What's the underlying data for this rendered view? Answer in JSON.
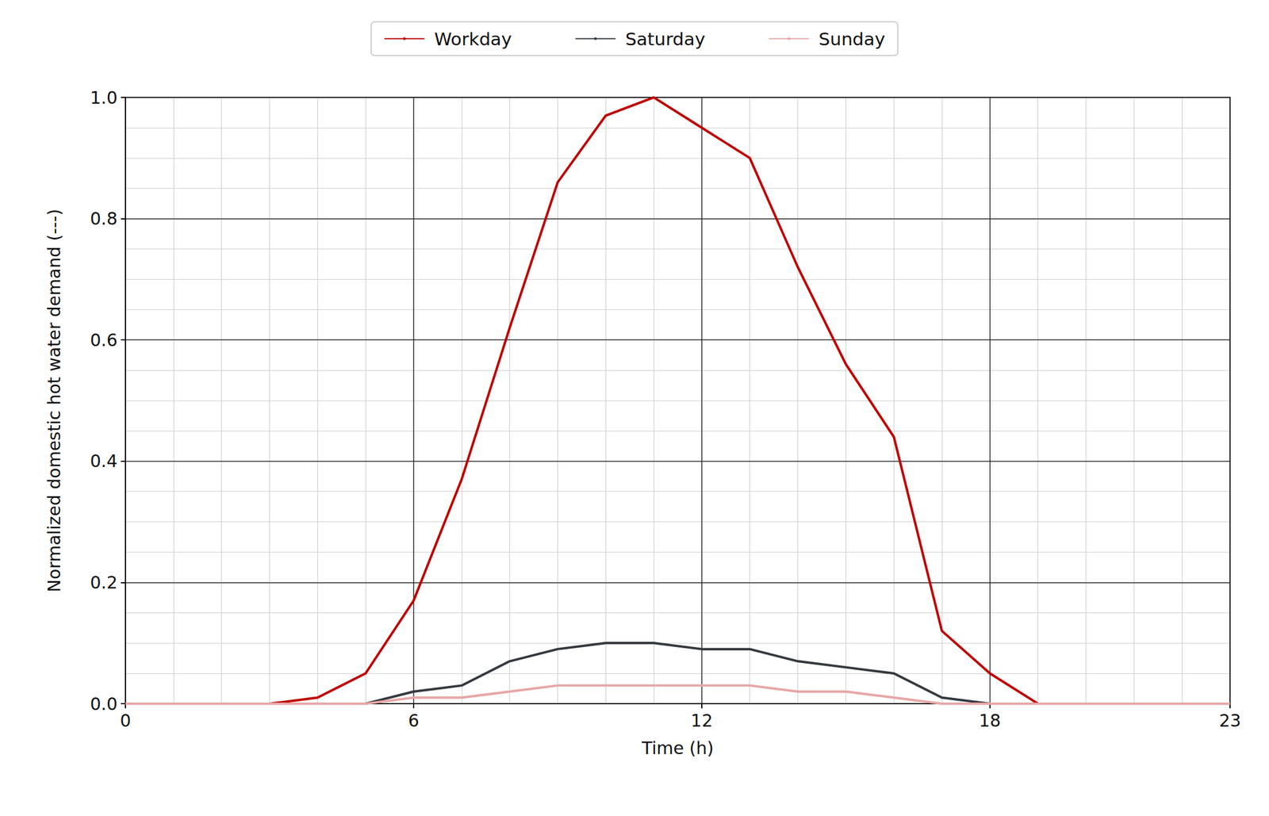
{
  "chart_data": {
    "type": "line",
    "x_label": "Time (h)",
    "y_label": "Normalized domestic hot water demand (---)",
    "x": [
      0,
      1,
      2,
      3,
      4,
      5,
      6,
      7,
      8,
      9,
      10,
      11,
      12,
      13,
      14,
      15,
      16,
      17,
      18,
      19,
      20,
      21,
      22,
      23
    ],
    "series": [
      {
        "name": "Workday",
        "color": "#c00000",
        "values": [
          0,
          0,
          0,
          0,
          0.01,
          0.05,
          0.17,
          0.37,
          0.62,
          0.86,
          0.97,
          1.0,
          0.95,
          0.9,
          0.72,
          0.56,
          0.44,
          0.12,
          0.05,
          0,
          0,
          0,
          0,
          0
        ]
      },
      {
        "name": "Saturday",
        "color": "#343a40",
        "values": [
          0,
          0,
          0,
          0,
          0,
          0,
          0.02,
          0.03,
          0.07,
          0.09,
          0.1,
          0.1,
          0.09,
          0.09,
          0.07,
          0.06,
          0.05,
          0.01,
          0,
          0,
          0,
          0,
          0,
          0
        ]
      },
      {
        "name": "Sunday",
        "color": "#e8a6a6",
        "values": [
          0,
          0,
          0,
          0,
          0,
          0,
          0.01,
          0.01,
          0.02,
          0.03,
          0.03,
          0.03,
          0.03,
          0.03,
          0.02,
          0.02,
          0.01,
          0,
          0,
          0,
          0,
          0,
          0,
          0
        ]
      }
    ],
    "xlim": [
      0,
      23
    ],
    "xticks": [
      0,
      6,
      12,
      18,
      23
    ],
    "ylim": [
      0,
      1
    ],
    "yticks": [
      {
        "value": 0,
        "label": "0.0"
      },
      0.2,
      0.4,
      0.6,
      0.8,
      {
        "value": 1,
        "label": "1.0"
      }
    ],
    "grid": true,
    "legend": "top"
  }
}
